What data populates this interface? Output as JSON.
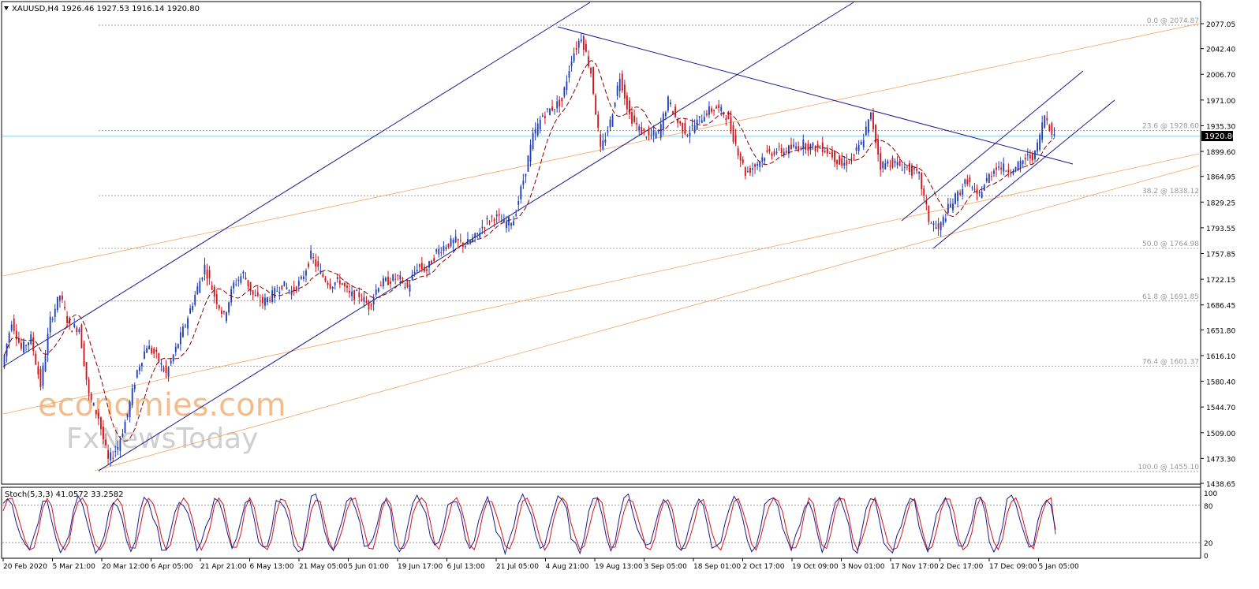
{
  "header": {
    "symbol": "XAUUSD,H4",
    "ohlc": "1926.46 1927.53 1916.14 1920.80"
  },
  "colors": {
    "background": "#ffffff",
    "candle_up": "#1f3fb8",
    "candle_down": "#d0141b",
    "ma_line": "#8b0000",
    "channel_line": "#1a1a8c",
    "fan_line": "#f4a460",
    "fib_line": "#a0a0a0",
    "price_line": "#87ceeb",
    "current_price_bg": "#000000",
    "stoch_main": "#1a1a8c",
    "stoch_signal": "#d0141b",
    "watermark": "#f2b17a",
    "watermark2": "#b0b0b0"
  },
  "watermark": {
    "line1": "economies.com",
    "line2": "FxNewsToday"
  },
  "chart_data": {
    "type": "candlestick",
    "title": "XAUUSD,H4",
    "price_axis": {
      "ticks": [
        "2077.05",
        "2042.40",
        "2006.70",
        "1971.00",
        "1935.30",
        "1899.60",
        "1864.95",
        "1829.25",
        "1793.55",
        "1757.85",
        "1722.15",
        "1686.45",
        "1651.80",
        "1616.10",
        "1580.40",
        "1544.70",
        "1509.00",
        "1473.30",
        "1438.65"
      ],
      "ylim": [
        1438.65,
        2085
      ]
    },
    "current_price": "1920.80",
    "time_axis": {
      "labels": [
        "20 Feb 2020",
        "5 Mar 21:00",
        "20 Mar 12:00",
        "6 Apr 05:00",
        "21 Apr 21:00",
        "6 May 13:00",
        "21 May 05:00",
        "5 Jun 01:00",
        "19 Jun 17:00",
        "6 Jul 13:00",
        "21 Jul 05:00",
        "4 Aug 21:00",
        "19 Aug 13:00",
        "3 Sep 05:00",
        "18 Sep 01:00",
        "2 Oct 17:00",
        "19 Oct 09:00",
        "3 Nov 01:00",
        "17 Nov 17:00",
        "2 Dec 17:00",
        "17 Dec 09:00",
        "5 Jan 05:00"
      ]
    },
    "fibonacci": [
      {
        "label": "0.0 @ 2074.87",
        "price": 2074.87
      },
      {
        "label": "23.6 @ 1928.60",
        "price": 1928.6
      },
      {
        "label": "38.2 @ 1838.12",
        "price": 1838.12
      },
      {
        "label": "50.0 @ 1764.98",
        "price": 1764.98
      },
      {
        "label": "61.8 @ 1691.85",
        "price": 1691.85
      },
      {
        "label": "76.4 @ 1601.37",
        "price": 1601.37
      },
      {
        "label": "100.0 @ 1455.10",
        "price": 1455.1
      }
    ],
    "price_path": [
      [
        0,
        1600
      ],
      [
        1,
        1665
      ],
      [
        2,
        1625
      ],
      [
        3,
        1640
      ],
      [
        4,
        1575
      ],
      [
        5,
        1665
      ],
      [
        6,
        1700
      ],
      [
        7,
        1655
      ],
      [
        8,
        1655
      ],
      [
        9,
        1560
      ],
      [
        10,
        1530
      ],
      [
        11,
        1470
      ],
      [
        12,
        1490
      ],
      [
        13,
        1535
      ],
      [
        14,
        1595
      ],
      [
        15,
        1630
      ],
      [
        16,
        1615
      ],
      [
        17,
        1590
      ],
      [
        18,
        1625
      ],
      [
        19,
        1660
      ],
      [
        20,
        1700
      ],
      [
        21,
        1740
      ],
      [
        22,
        1700
      ],
      [
        23,
        1670
      ],
      [
        24,
        1715
      ],
      [
        25,
        1730
      ],
      [
        26,
        1700
      ],
      [
        27,
        1690
      ],
      [
        28,
        1700
      ],
      [
        29,
        1715
      ],
      [
        30,
        1705
      ],
      [
        31,
        1720
      ],
      [
        32,
        1755
      ],
      [
        33,
        1730
      ],
      [
        34,
        1715
      ],
      [
        35,
        1720
      ],
      [
        36,
        1700
      ],
      [
        37,
        1700
      ],
      [
        38,
        1685
      ],
      [
        39,
        1715
      ],
      [
        40,
        1720
      ],
      [
        41,
        1725
      ],
      [
        42,
        1710
      ],
      [
        43,
        1740
      ],
      [
        44,
        1735
      ],
      [
        45,
        1760
      ],
      [
        46,
        1770
      ],
      [
        47,
        1775
      ],
      [
        48,
        1770
      ],
      [
        49,
        1780
      ],
      [
        50,
        1800
      ],
      [
        51,
        1810
      ],
      [
        52,
        1800
      ],
      [
        53,
        1805
      ],
      [
        54,
        1860
      ],
      [
        55,
        1920
      ],
      [
        56,
        1950
      ],
      [
        57,
        1960
      ],
      [
        58,
        1970
      ],
      [
        59,
        2030
      ],
      [
        60,
        2060
      ],
      [
        61,
        2010
      ],
      [
        62,
        1900
      ],
      [
        63,
        1940
      ],
      [
        64,
        2005
      ],
      [
        65,
        1950
      ],
      [
        66,
        1930
      ],
      [
        67,
        1920
      ],
      [
        68,
        1925
      ],
      [
        69,
        1970
      ],
      [
        70,
        1940
      ],
      [
        71,
        1925
      ],
      [
        72,
        1940
      ],
      [
        73,
        1955
      ],
      [
        74,
        1960
      ],
      [
        75,
        1950
      ],
      [
        76,
        1910
      ],
      [
        77,
        1870
      ],
      [
        78,
        1880
      ],
      [
        79,
        1895
      ],
      [
        80,
        1900
      ],
      [
        81,
        1900
      ],
      [
        82,
        1905
      ],
      [
        83,
        1910
      ],
      [
        84,
        1905
      ],
      [
        85,
        1905
      ],
      [
        86,
        1895
      ],
      [
        87,
        1880
      ],
      [
        88,
        1890
      ],
      [
        89,
        1910
      ],
      [
        90,
        1950
      ],
      [
        91,
        1880
      ],
      [
        92,
        1885
      ],
      [
        93,
        1880
      ],
      [
        94,
        1875
      ],
      [
        95,
        1865
      ],
      [
        96,
        1805
      ],
      [
        97,
        1790
      ],
      [
        98,
        1820
      ],
      [
        99,
        1840
      ],
      [
        100,
        1860
      ],
      [
        101,
        1835
      ],
      [
        102,
        1860
      ],
      [
        103,
        1880
      ],
      [
        104,
        1875
      ],
      [
        105,
        1875
      ],
      [
        106,
        1890
      ],
      [
        107,
        1895
      ],
      [
        108,
        1950
      ],
      [
        109,
        1920.8
      ]
    ],
    "stochastic": {
      "label": "Stoch(5,3,3) 41.0572 33.2582",
      "main": 41.0572,
      "signal": 33.2582,
      "ticks": [
        "100",
        "80",
        "20",
        "0"
      ],
      "levels": [
        80,
        20
      ]
    }
  }
}
